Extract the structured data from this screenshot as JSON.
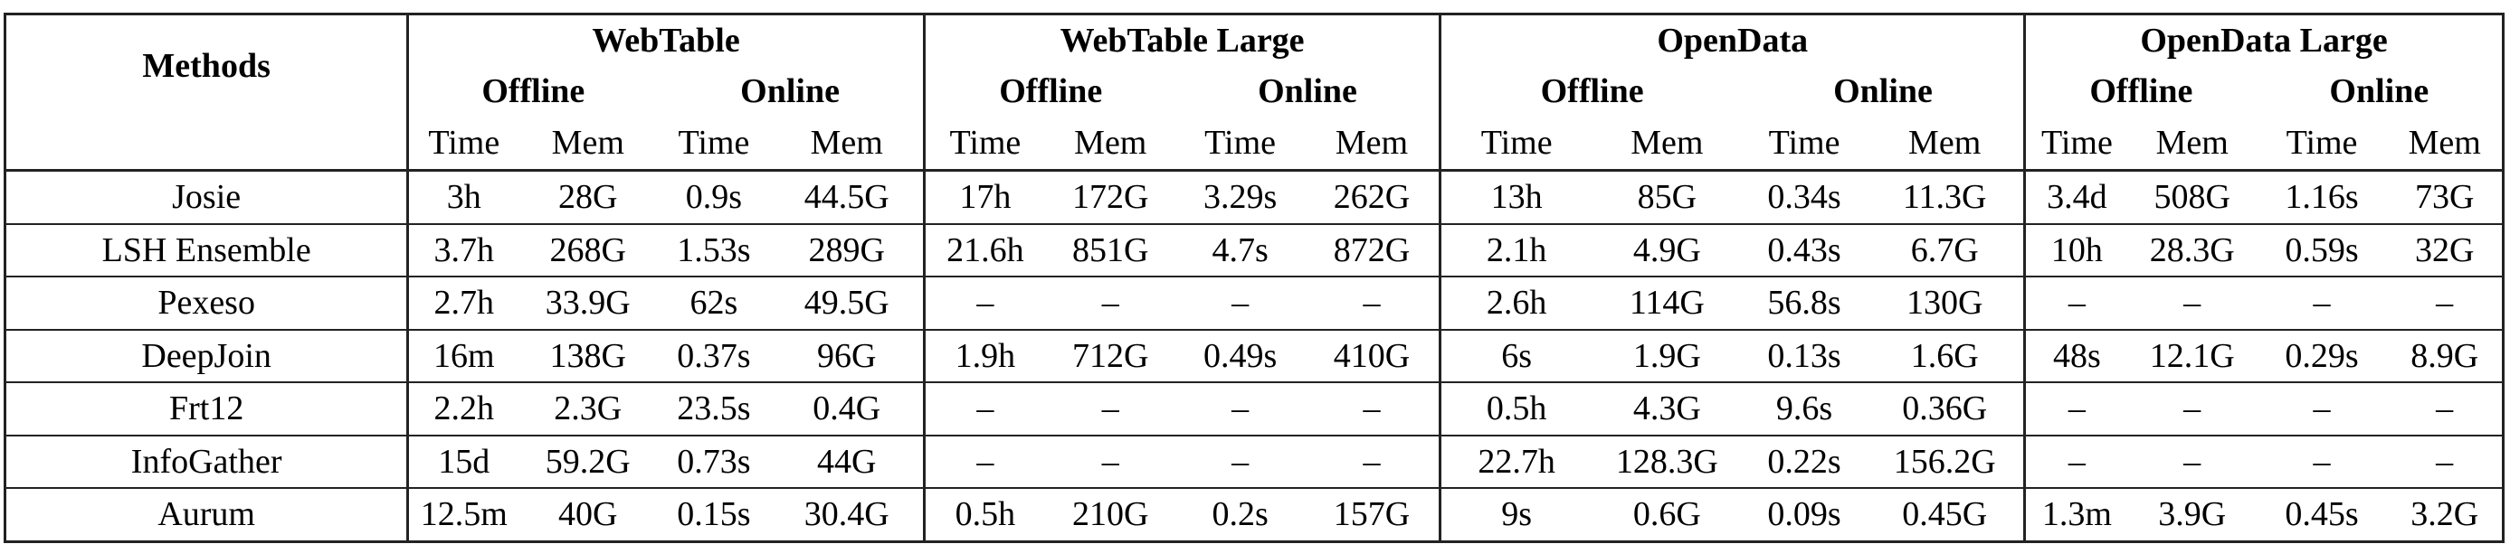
{
  "table": {
    "methods_header": "Methods",
    "groups": [
      {
        "name": "WebTable"
      },
      {
        "name": "WebTable Large"
      },
      {
        "name": "OpenData"
      },
      {
        "name": "OpenData Large"
      }
    ],
    "phases": [
      "Offline",
      "Online"
    ],
    "metrics": [
      "Time",
      "Mem"
    ],
    "rows": [
      {
        "method": "Josie",
        "cells": [
          "3h",
          "28G",
          "0.9s",
          "44.5G",
          "17h",
          "172G",
          "3.29s",
          "262G",
          "13h",
          "85G",
          "0.34s",
          "11.3G",
          "3.4d",
          "508G",
          "1.16s",
          "73G"
        ]
      },
      {
        "method": "LSH Ensemble",
        "cells": [
          "3.7h",
          "268G",
          "1.53s",
          "289G",
          "21.6h",
          "851G",
          "4.7s",
          "872G",
          "2.1h",
          "4.9G",
          "0.43s",
          "6.7G",
          "10h",
          "28.3G",
          "0.59s",
          "32G"
        ]
      },
      {
        "method": "Pexeso",
        "cells": [
          "2.7h",
          "33.9G",
          "62s",
          "49.5G",
          "–",
          "–",
          "–",
          "–",
          "2.6h",
          "114G",
          "56.8s",
          "130G",
          "–",
          "–",
          "–",
          "–"
        ]
      },
      {
        "method": "DeepJoin",
        "cells": [
          "16m",
          "138G",
          "0.37s",
          "96G",
          "1.9h",
          "712G",
          "0.49s",
          "410G",
          "6s",
          "1.9G",
          "0.13s",
          "1.6G",
          "48s",
          "12.1G",
          "0.29s",
          "8.9G"
        ]
      },
      {
        "method": "Frt12",
        "cells": [
          "2.2h",
          "2.3G",
          "23.5s",
          "0.4G",
          "–",
          "–",
          "–",
          "–",
          "0.5h",
          "4.3G",
          "9.6s",
          "0.36G",
          "–",
          "–",
          "–",
          "–"
        ]
      },
      {
        "method": "InfoGather",
        "cells": [
          "15d",
          "59.2G",
          "0.73s",
          "44G",
          "–",
          "–",
          "–",
          "–",
          "22.7h",
          "128.3G",
          "0.22s",
          "156.2G",
          "–",
          "–",
          "–",
          "–"
        ]
      },
      {
        "method": "Aurum",
        "cells": [
          "12.5m",
          "40G",
          "0.15s",
          "30.4G",
          "0.5h",
          "210G",
          "0.2s",
          "157G",
          "9s",
          "0.6G",
          "0.09s",
          "0.45G",
          "1.3m",
          "3.9G",
          "0.45s",
          "3.2G"
        ]
      }
    ]
  }
}
